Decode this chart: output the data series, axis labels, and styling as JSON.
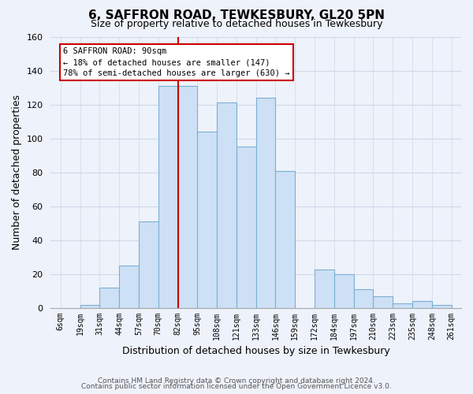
{
  "title": "6, SAFFRON ROAD, TEWKESBURY, GL20 5PN",
  "subtitle": "Size of property relative to detached houses in Tewkesbury",
  "xlabel": "Distribution of detached houses by size in Tewkesbury",
  "ylabel": "Number of detached properties",
  "bin_labels": [
    "6sqm",
    "19sqm",
    "31sqm",
    "44sqm",
    "57sqm",
    "70sqm",
    "82sqm",
    "95sqm",
    "108sqm",
    "121sqm",
    "133sqm",
    "146sqm",
    "159sqm",
    "172sqm",
    "184sqm",
    "197sqm",
    "210sqm",
    "223sqm",
    "235sqm",
    "248sqm",
    "261sqm"
  ],
  "bar_values": [
    0,
    2,
    12,
    25,
    51,
    131,
    131,
    104,
    121,
    95,
    124,
    81,
    0,
    23,
    20,
    11,
    7,
    3,
    4,
    2
  ],
  "bar_color": "#cde0f5",
  "bar_edge_color": "#7aafd4",
  "vline_color": "#cc0000",
  "ylim": [
    0,
    160
  ],
  "yticks": [
    0,
    20,
    40,
    60,
    80,
    100,
    120,
    140,
    160
  ],
  "annotation_title": "6 SAFFRON ROAD: 90sqm",
  "annotation_line1": "← 18% of detached houses are smaller (147)",
  "annotation_line2": "78% of semi-detached houses are larger (630) →",
  "annotation_box_color": "#ffffff",
  "annotation_box_edge": "#cc0000",
  "footer_line1": "Contains HM Land Registry data © Crown copyright and database right 2024.",
  "footer_line2": "Contains public sector information licensed under the Open Government Licence v3.0.",
  "background_color": "#eef2fa",
  "grid_color": "#d0d8e8"
}
